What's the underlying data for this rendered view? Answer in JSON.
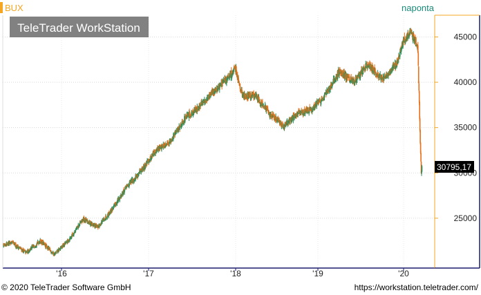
{
  "header": {
    "instrument": "BUX",
    "period": "naponta"
  },
  "watermark": "TeleTrader WorkStation",
  "footer": {
    "copyright": "© 2020 TeleTrader Software GmbH",
    "url": "https://workstation.teletrader.com/"
  },
  "colors": {
    "up_candle": "#2e8b57",
    "down_candle": "#e8701a",
    "accent": "#f5a623",
    "frame": "#1a1a6e",
    "last_price_bg": "#000000",
    "period_text": "#1a8a7a"
  },
  "chart_data": {
    "type": "candlestick",
    "title": "BUX",
    "xlabel": "",
    "ylabel": "",
    "x_ticks": [
      "'16",
      "'17",
      "'18",
      "'19",
      "'20"
    ],
    "y_ticks": [
      25000,
      30000,
      35000,
      40000,
      45000
    ],
    "y_tick_labels": [
      "25000",
      "30000",
      "35000",
      "40000",
      "45000"
    ],
    "ylim": [
      19500,
      47400
    ],
    "last_value": 30795.17,
    "last_value_label": "30795,17",
    "grid": true,
    "series": [
      {
        "x": [
          "2015-04",
          "2015-06",
          "2015-08",
          "2015-10",
          "2015-12",
          "2016-02",
          "2016-04",
          "2016-06",
          "2016-08",
          "2016-10",
          "2016-12",
          "2017-02",
          "2017-04",
          "2017-06",
          "2017-08",
          "2017-10",
          "2017-12",
          "2018-01",
          "2018-02",
          "2018-04",
          "2018-06",
          "2018-08",
          "2018-10",
          "2018-12",
          "2019-02",
          "2019-04",
          "2019-06",
          "2019-08",
          "2019-10",
          "2019-12",
          "2020-01",
          "2020-02",
          "2020-03-01",
          "2020-03-10",
          "2020-03-16",
          "2020-03-20"
        ],
        "close": [
          21900,
          22300,
          21200,
          22500,
          21000,
          22600,
          24900,
          24000,
          26000,
          28500,
          30200,
          32500,
          33500,
          36000,
          37300,
          39000,
          40500,
          41500,
          38500,
          38500,
          36500,
          35200,
          36500,
          37000,
          38500,
          41200,
          40000,
          42000,
          40300,
          42000,
          44500,
          45500,
          44000,
          35000,
          30000,
          30795
        ]
      }
    ]
  }
}
